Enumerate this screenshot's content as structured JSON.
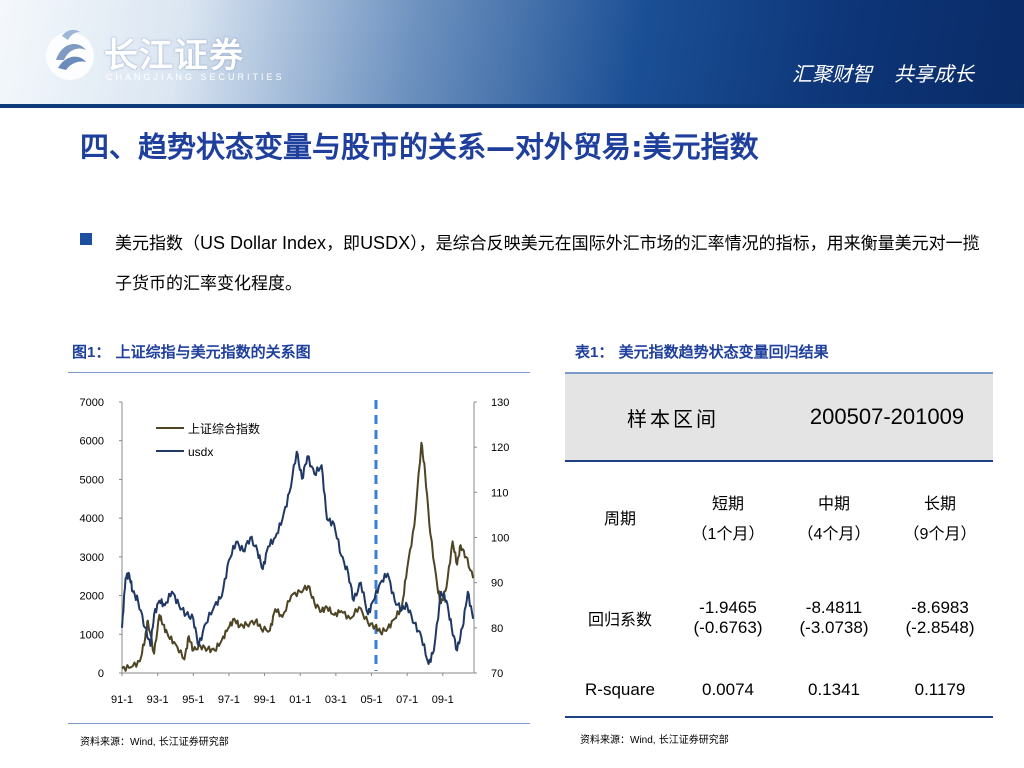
{
  "header": {
    "logo_cn": "长江证券",
    "logo_en": "CHANGJIANG SECURITIES",
    "slogan_1": "汇聚财智",
    "slogan_2": "共享成长"
  },
  "title": "四、趋势状态变量与股市的关系—对外贸易:美元指数",
  "paragraph": {
    "p1": "美元指数（",
    "p2": "US Dollar Index",
    "p3": "，即",
    "p4": "USDX",
    "p5": "），是综合反映美元在国际外汇市场的汇率情况的指标，用来衡量美元对一揽子货币的汇率变化程度。"
  },
  "figure": {
    "caption_prefix": "图",
    "caption_num": "1",
    "caption_text": "： 上证综指与美元指数的关系图",
    "source_prefix": "资料来源：",
    "source_latin": "Wind,",
    "source_suffix": " 长江证券研究部"
  },
  "chart_data": {
    "type": "line",
    "title": "",
    "x_tick_labels": [
      "91-1",
      "93-1",
      "95-1",
      "97-1",
      "99-1",
      "01-1",
      "03-1",
      "05-1",
      "07-1",
      "09-1"
    ],
    "left_axis": {
      "ylim": [
        0,
        7000
      ],
      "ticks": [
        0,
        1000,
        2000,
        3000,
        4000,
        5000,
        6000,
        7000
      ]
    },
    "right_axis": {
      "ylim": [
        70,
        130
      ],
      "ticks": [
        70,
        80,
        90,
        100,
        110,
        120,
        130
      ]
    },
    "marker_line": {
      "x": 2005.25,
      "color": "#3a7fd0",
      "style": "dashed"
    },
    "series": [
      {
        "name": "上证综合指数",
        "axis": "left",
        "color": "#4e4525",
        "points": [
          [
            1991.0,
            120
          ],
          [
            1991.5,
            150
          ],
          [
            1992.0,
            300
          ],
          [
            1992.3,
            900
          ],
          [
            1992.45,
            1350
          ],
          [
            1992.8,
            500
          ],
          [
            1993.1,
            1500
          ],
          [
            1993.3,
            1250
          ],
          [
            1993.6,
            950
          ],
          [
            1994.0,
            750
          ],
          [
            1994.5,
            350
          ],
          [
            1994.75,
            950
          ],
          [
            1995.0,
            580
          ],
          [
            1995.4,
            700
          ],
          [
            1995.8,
            620
          ],
          [
            1996.2,
            580
          ],
          [
            1996.6,
            850
          ],
          [
            1996.95,
            1150
          ],
          [
            1997.3,
            1400
          ],
          [
            1997.6,
            1200
          ],
          [
            1998.0,
            1250
          ],
          [
            1998.5,
            1350
          ],
          [
            1998.8,
            1150
          ],
          [
            1999.3,
            1100
          ],
          [
            1999.6,
            1650
          ],
          [
            2000.0,
            1450
          ],
          [
            2000.5,
            2000
          ],
          [
            2001.0,
            2100
          ],
          [
            2001.45,
            2250
          ],
          [
            2001.8,
            1800
          ],
          [
            2002.2,
            1600
          ],
          [
            2002.5,
            1700
          ],
          [
            2002.9,
            1500
          ],
          [
            2003.3,
            1600
          ],
          [
            2003.8,
            1400
          ],
          [
            2004.3,
            1700
          ],
          [
            2004.8,
            1300
          ],
          [
            2005.2,
            1200
          ],
          [
            2005.5,
            1050
          ],
          [
            2005.9,
            1150
          ],
          [
            2006.3,
            1400
          ],
          [
            2006.7,
            1700
          ],
          [
            2007.0,
            2700
          ],
          [
            2007.4,
            3800
          ],
          [
            2007.8,
            5950
          ],
          [
            2008.0,
            5200
          ],
          [
            2008.3,
            3600
          ],
          [
            2008.7,
            2200
          ],
          [
            2008.9,
            1800
          ],
          [
            2009.2,
            2200
          ],
          [
            2009.55,
            3400
          ],
          [
            2009.8,
            2800
          ],
          [
            2010.0,
            3300
          ],
          [
            2010.3,
            3000
          ],
          [
            2010.7,
            2450
          ]
        ]
      },
      {
        "name": "usdx",
        "axis": "right",
        "color": "#1f3864",
        "points": [
          [
            1991.0,
            80
          ],
          [
            1991.2,
            91
          ],
          [
            1991.4,
            92
          ],
          [
            1991.6,
            88
          ],
          [
            1991.9,
            86
          ],
          [
            1992.3,
            80
          ],
          [
            1992.6,
            76
          ],
          [
            1992.8,
            83
          ],
          [
            1993.1,
            86
          ],
          [
            1993.4,
            85
          ],
          [
            1993.8,
            88
          ],
          [
            1994.2,
            85
          ],
          [
            1994.6,
            83
          ],
          [
            1995.0,
            82
          ],
          [
            1995.3,
            76
          ],
          [
            1995.7,
            81
          ],
          [
            1996.2,
            85
          ],
          [
            1996.6,
            87
          ],
          [
            1997.0,
            95
          ],
          [
            1997.4,
            99
          ],
          [
            1997.8,
            97
          ],
          [
            1998.2,
            100
          ],
          [
            1998.6,
            97
          ],
          [
            1998.9,
            93
          ],
          [
            1999.2,
            98
          ],
          [
            1999.6,
            100
          ],
          [
            2000.0,
            104
          ],
          [
            2000.4,
            110
          ],
          [
            2000.8,
            119
          ],
          [
            2001.1,
            113
          ],
          [
            2001.4,
            118
          ],
          [
            2001.8,
            114
          ],
          [
            2002.2,
            116
          ],
          [
            2002.5,
            104
          ],
          [
            2002.9,
            103
          ],
          [
            2003.3,
            96
          ],
          [
            2003.7,
            92
          ],
          [
            2004.0,
            86
          ],
          [
            2004.4,
            90
          ],
          [
            2004.8,
            83
          ],
          [
            2005.1,
            86
          ],
          [
            2005.5,
            90
          ],
          [
            2005.9,
            92
          ],
          [
            2006.3,
            86
          ],
          [
            2006.7,
            84
          ],
          [
            2007.0,
            85
          ],
          [
            2007.4,
            81
          ],
          [
            2007.8,
            78
          ],
          [
            2008.2,
            72
          ],
          [
            2008.5,
            75
          ],
          [
            2008.9,
            88
          ],
          [
            2009.2,
            86
          ],
          [
            2009.5,
            80
          ],
          [
            2009.8,
            75
          ],
          [
            2010.1,
            80
          ],
          [
            2010.4,
            88
          ],
          [
            2010.7,
            82
          ]
        ]
      }
    ],
    "legend": {
      "placement": "top-left"
    }
  },
  "table": {
    "caption_prefix": "表",
    "caption_num": "1",
    "caption_text": "： 美元指数趋势状态变量回归结果",
    "head_label": "样本区间",
    "head_value": "200507-201009",
    "period_label": "周期",
    "periods": [
      {
        "name": "短期",
        "paren_open": "（",
        "num": "1",
        "unit": "个月）"
      },
      {
        "name": "中期",
        "paren_open": "（",
        "num": "4",
        "unit": "个月）"
      },
      {
        "name": "长期",
        "paren_open": "（",
        "num": "9",
        "unit": "个月）"
      }
    ],
    "coef_label": "回归系数",
    "coef": [
      {
        "value": "-1.9465",
        "t": "(-0.6763)"
      },
      {
        "value": "-8.4811",
        "t": "(-3.0738)"
      },
      {
        "value": "-8.6983",
        "t": "(-2.8548)"
      }
    ],
    "rsq_label": "R-square",
    "rsq": [
      "0.0074",
      "0.1341",
      "0.1179"
    ],
    "source_prefix": "资料来源：",
    "source_latin": "Wind,",
    "source_suffix": " 长江证券研究部"
  }
}
